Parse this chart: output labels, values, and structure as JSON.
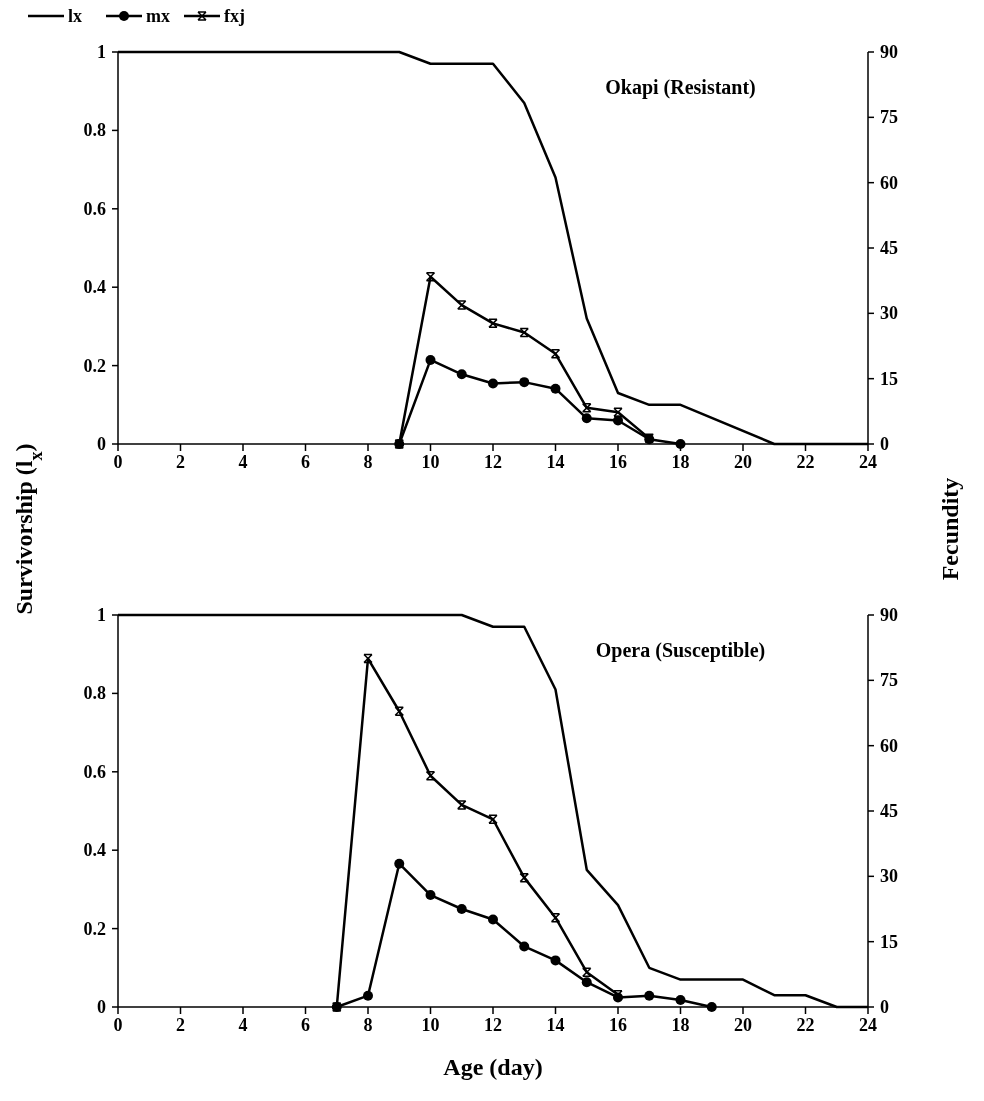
{
  "chart_data": [
    {
      "type": "line",
      "title": "Okapi (Resistant)",
      "ylabel": "Survivorship (l$_{x}$)",
      "y2label": "Fecundity",
      "legend": "top left",
      "xlim": [
        0,
        24
      ],
      "xticks": [
        0,
        2,
        4,
        6,
        8,
        10,
        12,
        14,
        16,
        18,
        20,
        22,
        24
      ],
      "ylim": [
        0,
        1
      ],
      "yticks": [
        0,
        0.2,
        0.4,
        0.6,
        0.8,
        1
      ],
      "y2lim": [
        0,
        90
      ],
      "y2ticks": [
        0,
        15,
        30,
        45,
        60,
        75,
        90
      ],
      "grid": false,
      "series": [
        {
          "name": "lx",
          "color": "#000000",
          "marker": "none",
          "x": [
            0,
            9,
            10,
            12,
            13,
            14,
            15,
            16,
            17,
            18,
            21,
            24
          ],
          "values": [
            1,
            1,
            0.97,
            0.97,
            0.87,
            0.68,
            0.32,
            0.13,
            0.1,
            0.1,
            0,
            0
          ]
        },
        {
          "name": "mx",
          "color": "#000000",
          "marker": "circle",
          "axis": "y2",
          "x": [
            9,
            10,
            11,
            12,
            13,
            14,
            15,
            16,
            17,
            18
          ],
          "values": [
            0,
            19.3,
            16,
            13.9,
            14.2,
            12.7,
            5.9,
            5.4,
            1.1,
            0
          ]
        },
        {
          "name": "fxj",
          "color": "#000000",
          "marker": "cross",
          "axis": "y2",
          "x": [
            9,
            10,
            11,
            12,
            13,
            14,
            15,
            16,
            17
          ],
          "values": [
            0,
            38.4,
            31.9,
            27.7,
            25.6,
            20.7,
            8.3,
            7.3,
            1.3
          ]
        }
      ]
    },
    {
      "type": "line",
      "title": "Opera (Susceptible)",
      "xlabel": "Age (day)",
      "xlim": [
        0,
        24
      ],
      "xticks": [
        0,
        2,
        4,
        6,
        8,
        10,
        12,
        14,
        16,
        18,
        20,
        22,
        24
      ],
      "ylim": [
        0,
        1
      ],
      "yticks": [
        0,
        0.2,
        0.4,
        0.6,
        0.8,
        1
      ],
      "y2lim": [
        0,
        90
      ],
      "y2ticks": [
        0,
        15,
        30,
        45,
        60,
        75,
        90
      ],
      "grid": false,
      "series": [
        {
          "color": "#000000",
          "marker": "none",
          "x": [
            0,
            11,
            12,
            13,
            14,
            15,
            16,
            17,
            18,
            20,
            21,
            22,
            23,
            24
          ],
          "values": [
            1,
            1,
            0.97,
            0.97,
            0.81,
            0.35,
            0.26,
            0.1,
            0.07,
            0.07,
            0.03,
            0.03,
            0,
            0
          ]
        },
        {
          "color": "#000000",
          "marker": "circle",
          "axis": "y2",
          "x": [
            7,
            8,
            9,
            10,
            11,
            12,
            13,
            14,
            15,
            16,
            17,
            18,
            19
          ],
          "values": [
            0,
            2.6,
            32.9,
            25.7,
            22.5,
            20.1,
            13.9,
            10.7,
            5.7,
            2.2,
            2.6,
            1.6,
            0
          ]
        },
        {
          "color": "#000000",
          "marker": "cross",
          "axis": "y2",
          "x": [
            7,
            8,
            9,
            10,
            11,
            12,
            13,
            14,
            15,
            16
          ],
          "values": [
            0,
            80,
            67.9,
            53.1,
            46.4,
            43.1,
            29.7,
            20.5,
            8,
            2.8
          ]
        }
      ]
    }
  ]
}
